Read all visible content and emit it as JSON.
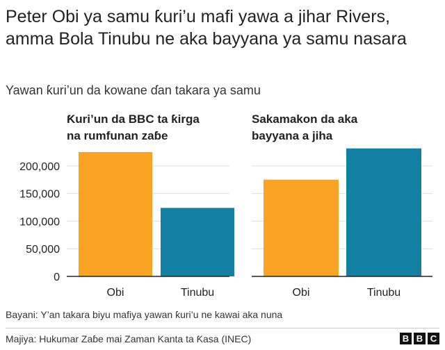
{
  "title": "Peter Obi ya samu ƙuri’u mafi yawa a jihar Rivers, amma Bola Tinubu ne aka bayyana ya samu nasara",
  "subtitle": "Yawan ƙuri’un da kowane ɗan takara ya samu",
  "note": "Bayani: Y’an takara biyu mafiya yawan ƙuri’u ne kawai aka nuna",
  "source": "Majiya: Hukumar Zaɓe mai Zaman Kanta ta Ƙasa (INEC)",
  "logo": [
    "B",
    "B",
    "C"
  ],
  "colors": {
    "Obi": "#fba324",
    "Tinubu": "#1380a1",
    "grid": "#dddddd",
    "axis": "#222222"
  },
  "chart_data": [
    {
      "type": "bar",
      "title": "Ƙuri’un da BBC ta ƙirga na rumfunan zaɓe",
      "categories": [
        "Obi",
        "Tinubu"
      ],
      "values": [
        225000,
        124000
      ],
      "ylim": [
        0,
        230000
      ],
      "yticks": [
        0,
        50000,
        100000,
        150000,
        200000
      ],
      "ytick_labels": [
        "0",
        "50,000",
        "100,000",
        "150,000",
        "200,000"
      ],
      "grid": true
    },
    {
      "type": "bar",
      "title": "Sakamakon da aka bayyana a jiha",
      "categories": [
        "Obi",
        "Tinubu"
      ],
      "values": [
        175071,
        231591
      ],
      "ylim": [
        0,
        230000
      ],
      "yticks": [
        0,
        50000,
        100000,
        150000,
        200000
      ],
      "grid": true
    }
  ]
}
